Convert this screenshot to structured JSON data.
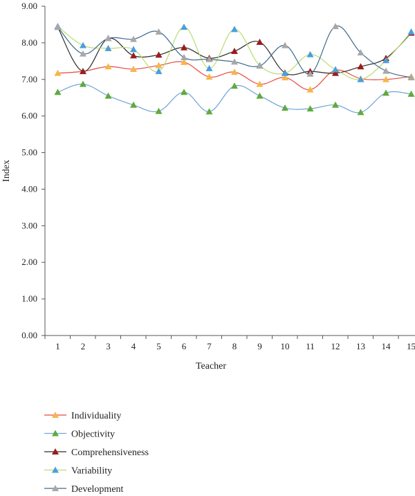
{
  "chart_data": {
    "type": "line",
    "title": "",
    "xlabel": "Teacher",
    "ylabel": "Index",
    "x": [
      1,
      2,
      3,
      4,
      5,
      6,
      7,
      8,
      9,
      10,
      11,
      12,
      13,
      14,
      15
    ],
    "x_tick_labels": [
      "1",
      "2",
      "3",
      "4",
      "5",
      "6",
      "7",
      "8",
      "9",
      "10",
      "11",
      "12",
      "13",
      "14",
      "15"
    ],
    "ylim": [
      0,
      9
    ],
    "y_tick_labels": [
      "0.00",
      "1.00",
      "2.00",
      "3.00",
      "4.00",
      "5.00",
      "6.00",
      "7.00",
      "8.00",
      "9.00"
    ],
    "grid": false,
    "legend_position": "bottom-left",
    "series": [
      {
        "name": "Individuality",
        "line_color": "#e8483c",
        "marker_color": "#f5b64a",
        "values": [
          7.17,
          7.22,
          7.35,
          7.28,
          7.38,
          7.47,
          7.07,
          7.2,
          6.87,
          7.05,
          6.72,
          7.25,
          7.02,
          7.0,
          7.08
        ]
      },
      {
        "name": "Objectivity",
        "line_color": "#6fa3d6",
        "marker_color": "#5faa3c",
        "values": [
          6.65,
          6.87,
          6.55,
          6.3,
          6.13,
          6.65,
          6.12,
          6.82,
          6.55,
          6.22,
          6.2,
          6.3,
          6.1,
          6.63,
          6.6
        ]
      },
      {
        "name": "Comprehensiveness",
        "line_color": "#2b2b2b",
        "marker_color": "#9b1c1c",
        "values": [
          8.43,
          7.22,
          8.12,
          7.65,
          7.67,
          7.87,
          7.58,
          7.77,
          8.02,
          7.18,
          7.22,
          7.17,
          7.35,
          7.58,
          8.27
        ]
      },
      {
        "name": "Variability",
        "line_color": "#b8dc6e",
        "marker_color": "#4a9ee0",
        "values": [
          8.45,
          7.93,
          7.85,
          7.82,
          7.22,
          8.43,
          7.3,
          8.37,
          7.38,
          7.17,
          7.68,
          7.27,
          7.0,
          7.52,
          8.3
        ]
      },
      {
        "name": "Development",
        "line_color": "#3d6a8c",
        "marker_color": "#a8a8a8",
        "values": [
          8.43,
          7.7,
          8.12,
          8.1,
          8.3,
          7.6,
          7.55,
          7.48,
          7.37,
          7.93,
          7.15,
          8.45,
          7.73,
          7.23,
          7.05
        ]
      }
    ]
  }
}
